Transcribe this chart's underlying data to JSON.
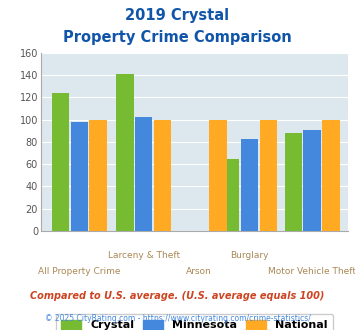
{
  "title_line1": "2019 Crystal",
  "title_line2": "Property Crime Comparison",
  "series": {
    "Crystal": [
      124,
      141,
      null,
      65,
      88
    ],
    "Minnesota": [
      98,
      102,
      null,
      83,
      91
    ],
    "National": [
      100,
      100,
      100,
      100,
      100
    ]
  },
  "colors": {
    "Crystal": "#77bb33",
    "Minnesota": "#4488dd",
    "National": "#ffaa22"
  },
  "group_centers": [
    0.38,
    1.1,
    1.72,
    2.28,
    2.98
  ],
  "ylim": [
    0,
    160
  ],
  "yticks": [
    0,
    20,
    40,
    60,
    80,
    100,
    120,
    140,
    160
  ],
  "footnote1": "Compared to U.S. average. (U.S. average equals 100)",
  "footnote2": "© 2025 CityRating.com - https://www.cityrating.com/crime-statistics/",
  "bg_color": "#dde8ee",
  "title_color": "#1155aa",
  "label_color_top": "#aa8855",
  "label_color_bot": "#aa8855",
  "legend_label_color": "#000000",
  "footnote1_color": "#cc4422",
  "footnote2_color": "#4488dd",
  "bar_width": 0.21,
  "xlim": [
    -0.05,
    3.38
  ]
}
